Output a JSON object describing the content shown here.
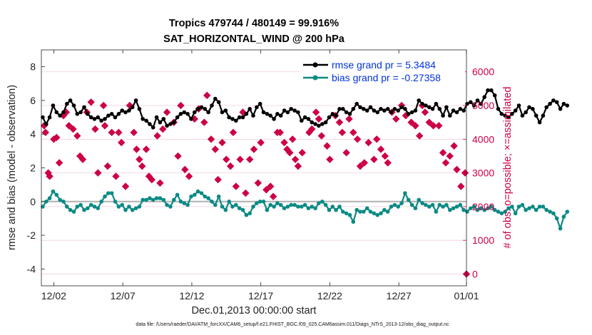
{
  "chart_data": {
    "type": "line",
    "title_line1": "Tropics 479744 / 480149 = 99.916%",
    "title_line2": "SAT_HORIZONTAL_WIND @ 200 hPa",
    "xlabel": "Dec.01,2013 00:00:00 start",
    "ylabel_left": "rmse and bias (model - observation)",
    "ylabel_right": "# of obs: o=possible; ×=assimilated",
    "footnote": "data file: /Users/raeder/DAI/ATM_forcXX/CAM6_setup/f.e21.FHIST_BGC.f09_025.CAM6assim.011/Diags_NTrS_2013-12/obs_diag_output.nc",
    "xlim": [
      0.5,
      31.3
    ],
    "ylim_left": [
      -5,
      9
    ],
    "ylim_right": [
      -350,
      6650
    ],
    "yticks_left": [
      -4,
      -2,
      0,
      2,
      4,
      6,
      8
    ],
    "yticks_right": [
      0,
      1000,
      2000,
      3000,
      4000,
      5000,
      6000
    ],
    "xticks": [
      {
        "day": 1.4,
        "label": "12/02"
      },
      {
        "day": 6.4,
        "label": "12/07"
      },
      {
        "day": 11.4,
        "label": "12/12"
      },
      {
        "day": 16.4,
        "label": "12/17"
      },
      {
        "day": 21.4,
        "label": "12/22"
      },
      {
        "day": 26.4,
        "label": "12/27"
      },
      {
        "day": 31.4,
        "label": "01/01"
      }
    ],
    "grid": true,
    "legend": [
      {
        "name": "rmse grand pr = 5.3484",
        "color": "#000000"
      },
      {
        "name": "bias grand pr = -0.27358",
        "color": "#0b8a84"
      }
    ],
    "legend_position": "top-right",
    "colors": {
      "rmse": "#000000",
      "bias": "#0b8a84",
      "obs": "#cc0044",
      "zero_line": "#b0b0b0"
    },
    "series": [
      {
        "name": "rmse",
        "axis": "left",
        "x_start": 0.6,
        "x_step": 0.25,
        "values": [
          5,
          4.6,
          5,
          5.7,
          5.3,
          5.1,
          5.3,
          5.8,
          6,
          5.7,
          5.2,
          5.3,
          5.6,
          5.2,
          5,
          4.9,
          5,
          4.8,
          4.9,
          5.1,
          5.2,
          5,
          5.2,
          5.4,
          5.3,
          5.4,
          5.6,
          6,
          5.5,
          4.9,
          4.8,
          4.6,
          4.4,
          5,
          4.7,
          4.9,
          4.5,
          4.6,
          4.7,
          5,
          5.2,
          5.3,
          5.2,
          4.9,
          5.3,
          5.5,
          5.6,
          5.5,
          5.3,
          5.7,
          6.1,
          5.9,
          5.3,
          5.4,
          5,
          4.9,
          4.8,
          5,
          5,
          5.2,
          5.5,
          5.1,
          5.6,
          5.8,
          5.3,
          5.2,
          5.1,
          4.9,
          5.2,
          5.1,
          5.4,
          5.3,
          5.5,
          5.4,
          5.3,
          4.8,
          5,
          4.9,
          4.7,
          4.6,
          4.5,
          4.6,
          4.7,
          5,
          5.2,
          5.1,
          5.5,
          5.5,
          5.3,
          5.2,
          5.5,
          5.8,
          5.6,
          5.5,
          5.4,
          5.6,
          5.4,
          5.3,
          5.5,
          5.4,
          5.5,
          5.3,
          5.5,
          5.4,
          5.6,
          5.5,
          5.2,
          5.3,
          5.4,
          6,
          5.8,
          5.7,
          5.6,
          5.5,
          5.8,
          5.5,
          5.1,
          5.6,
          5.1,
          5.4,
          5.3,
          5.5,
          5.4,
          5.8,
          5.9,
          5.7,
          6,
          5.8,
          6.2,
          6.6,
          6.6,
          6.3,
          5.5,
          5.2,
          5.1,
          5,
          5.2,
          5.4,
          5.7,
          5.1,
          5.3,
          5.6,
          5.5,
          5.1,
          4.7,
          5.1,
          5.6,
          5.8,
          6,
          5.9,
          5.5,
          5.8,
          5.7
        ]
      },
      {
        "name": "bias",
        "axis": "left",
        "x_start": 0.6,
        "x_step": 0.25,
        "values": [
          -0.3,
          0,
          0.2,
          0.6,
          0.4,
          0.1,
          0,
          -0.3,
          -0.5,
          -0.6,
          -0.3,
          -0.2,
          -0.5,
          -0.4,
          -0.2,
          -0.3,
          -0.4,
          0,
          0.3,
          0.5,
          0.5,
          0,
          -0.3,
          -0.2,
          -0.5,
          -0.3,
          -0.5,
          -0.4,
          -0.3,
          0.1,
          0.1,
          0.2,
          0.1,
          0.2,
          0.2,
          0.1,
          -0.2,
          -0.3,
          0.1,
          0.4,
          0,
          -0.1,
          -0.2,
          0.3,
          0.4,
          0.6,
          0.5,
          0.3,
          0.2,
          0,
          -0.2,
          0.3,
          -0.3,
          -0.5,
          0,
          -0.3,
          -0.2,
          -0.4,
          -0.5,
          -0.8,
          -0.7,
          -0.3,
          -0.1,
          0,
          0,
          -0.5,
          -0.2,
          -0.3,
          -0.1,
          -0.2,
          -0.4,
          -0.3,
          -0.2,
          -0.2,
          -0.3,
          -0.3,
          -0.2,
          -0.4,
          -0.3,
          -0.4,
          -0.1,
          0,
          -0.2,
          -0.5,
          -0.3,
          -0.5,
          -0.3,
          -0.6,
          -0.7,
          -0.8,
          -1.2,
          -0.5,
          -0.6,
          -0.6,
          -0.4,
          -0.6,
          -0.7,
          -0.8,
          -0.7,
          -0.5,
          -0.6,
          -0.3,
          -0.2,
          -0.3,
          -0.1,
          0.5,
          0.1,
          -0.2,
          -0.4,
          0.1,
          -0.1,
          -0.2,
          -0.3,
          -0.2,
          -0.6,
          -0.2,
          -0.3,
          -0.2,
          -0.5,
          -0.4,
          -0.3,
          -0.2,
          -0.5,
          -0.6,
          -0.4,
          -0.3,
          -0.5,
          -0.4,
          -0.5,
          -0.4,
          -0.3,
          -0.5,
          -0.6,
          -0.7,
          -0.6,
          -0.4,
          -0.3,
          -0.7,
          -0.3,
          -0.2,
          -0.5,
          -0.4,
          -0.3,
          -0.5,
          -0.3,
          -0.3,
          -0.5,
          -0.6,
          -0.7,
          -1,
          -1.6,
          -0.9,
          -0.6
        ]
      },
      {
        "name": "obs_assimilated",
        "axis": "right",
        "style": "markers",
        "points": [
          [
            0.7,
            4400
          ],
          [
            0.8,
            4200
          ],
          [
            1.0,
            3000
          ],
          [
            1.1,
            2900
          ],
          [
            1.4,
            4000
          ],
          [
            1.6,
            4050
          ],
          [
            1.8,
            3300
          ],
          [
            2.1,
            4700
          ],
          [
            2.3,
            4800
          ],
          [
            2.5,
            4400
          ],
          [
            2.8,
            4300
          ],
          [
            3.1,
            4100
          ],
          [
            3.3,
            3500
          ],
          [
            3.5,
            3400
          ],
          [
            3.8,
            4800
          ],
          [
            4.1,
            5100
          ],
          [
            4.4,
            4300
          ],
          [
            4.6,
            3000
          ],
          [
            5.0,
            5000
          ],
          [
            5.1,
            4400
          ],
          [
            5.3,
            3200
          ],
          [
            5.6,
            4200
          ],
          [
            5.9,
            2900
          ],
          [
            6.1,
            4200
          ],
          [
            6.3,
            3900
          ],
          [
            6.6,
            2600
          ],
          [
            6.9,
            5000
          ],
          [
            7.2,
            4200
          ],
          [
            7.4,
            3700
          ],
          [
            7.6,
            3400
          ],
          [
            7.8,
            3200
          ],
          [
            8.1,
            3700
          ],
          [
            8.3,
            2900
          ],
          [
            8.5,
            2800
          ],
          [
            8.9,
            4100
          ],
          [
            9.1,
            2700
          ],
          [
            9.3,
            4300
          ],
          [
            9.6,
            4800
          ],
          [
            10.1,
            4500
          ],
          [
            10.4,
            3500
          ],
          [
            10.6,
            5000
          ],
          [
            10.9,
            3100
          ],
          [
            11.2,
            2900
          ],
          [
            11.6,
            4600
          ],
          [
            11.9,
            4900
          ],
          [
            12.3,
            4500
          ],
          [
            12.5,
            5300
          ],
          [
            12.8,
            4000
          ],
          [
            13.1,
            3700
          ],
          [
            13.3,
            2800
          ],
          [
            13.6,
            3900
          ],
          [
            13.9,
            3400
          ],
          [
            14.2,
            3200
          ],
          [
            14.4,
            4200
          ],
          [
            14.6,
            2600
          ],
          [
            14.9,
            3400
          ],
          [
            15.1,
            4800
          ],
          [
            15.3,
            2400
          ],
          [
            15.6,
            3400
          ],
          [
            15.9,
            3700
          ],
          [
            16.2,
            2700
          ],
          [
            16.4,
            3900
          ],
          [
            16.8,
            2500
          ],
          [
            17.1,
            2600
          ],
          [
            17.3,
            2300
          ],
          [
            17.6,
            4200
          ],
          [
            17.8,
            4200
          ],
          [
            18.1,
            3900
          ],
          [
            18.3,
            3700
          ],
          [
            18.5,
            3600
          ],
          [
            18.7,
            4000
          ],
          [
            18.9,
            3400
          ],
          [
            19.1,
            3200
          ],
          [
            19.4,
            3600
          ],
          [
            19.9,
            4200
          ],
          [
            20.1,
            4300
          ],
          [
            20.4,
            4800
          ],
          [
            20.6,
            4600
          ],
          [
            20.8,
            4100
          ],
          [
            21.2,
            3800
          ],
          [
            21.4,
            3400
          ],
          [
            21.8,
            4700
          ],
          [
            22.1,
            4500
          ],
          [
            22.3,
            4200
          ],
          [
            22.6,
            3600
          ],
          [
            22.8,
            4600
          ],
          [
            23.1,
            4200
          ],
          [
            23.4,
            4000
          ],
          [
            23.6,
            3200
          ],
          [
            23.9,
            3300
          ],
          [
            24.2,
            3900
          ],
          [
            24.6,
            3400
          ],
          [
            24.8,
            4000
          ],
          [
            25.1,
            3700
          ],
          [
            25.4,
            3500
          ],
          [
            25.6,
            3300
          ],
          [
            25.9,
            4800
          ],
          [
            26.2,
            4600
          ],
          [
            26.6,
            5000
          ],
          [
            26.9,
            4700
          ],
          [
            27.3,
            4500
          ],
          [
            27.6,
            4400
          ],
          [
            27.9,
            4100
          ],
          [
            28.1,
            5000
          ],
          [
            28.3,
            4800
          ],
          [
            28.6,
            4500
          ],
          [
            28.9,
            4400
          ],
          [
            29.3,
            4400
          ],
          [
            29.6,
            3600
          ],
          [
            29.8,
            3300
          ],
          [
            30.1,
            3500
          ],
          [
            30.4,
            3800
          ],
          [
            30.6,
            3100
          ],
          [
            30.9,
            2600
          ],
          [
            31.2,
            3000
          ],
          [
            31.3,
            0
          ]
        ]
      }
    ]
  }
}
